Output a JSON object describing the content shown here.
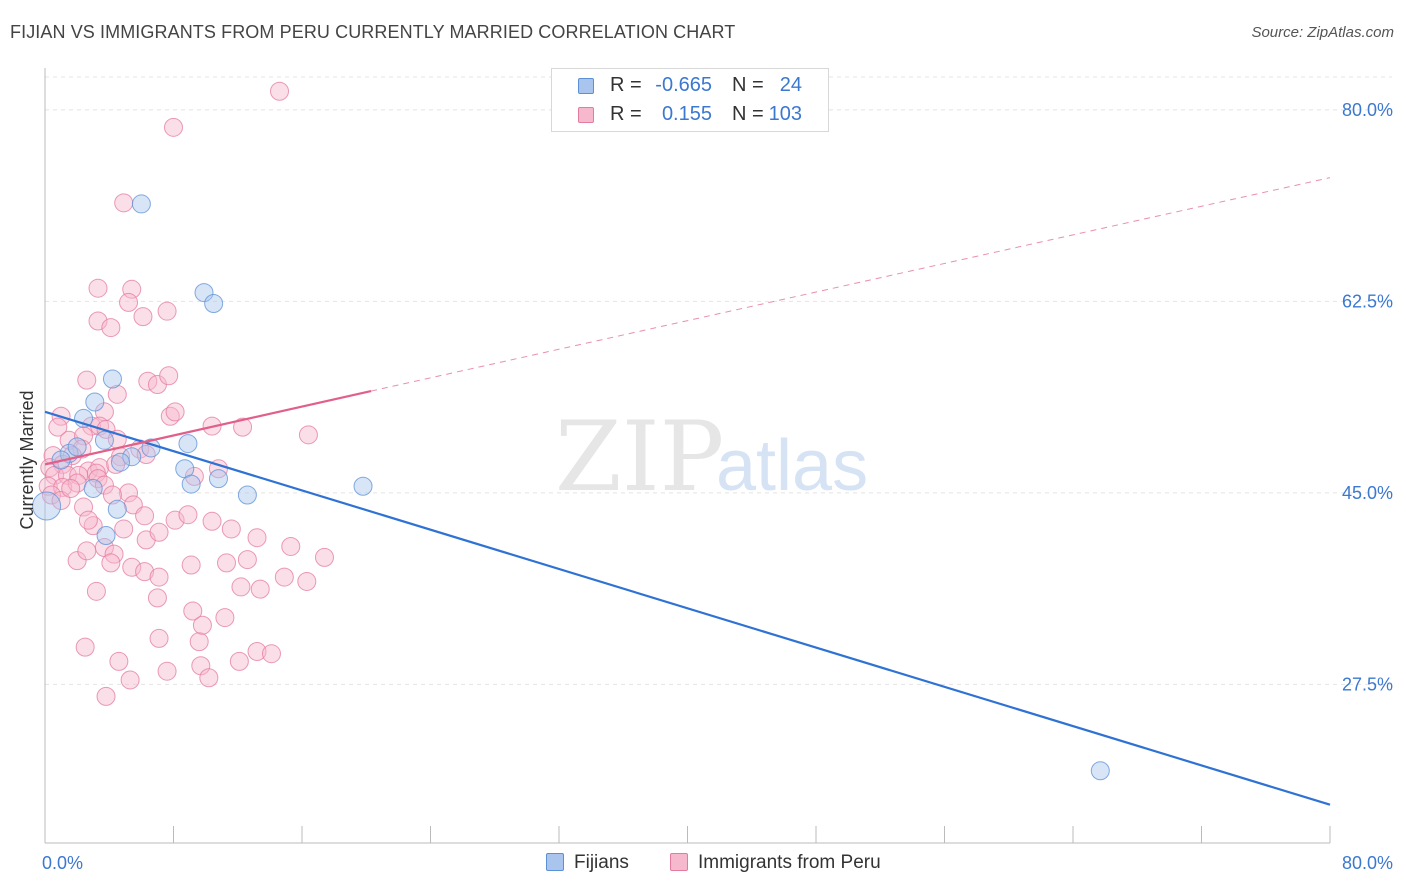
{
  "title": "FIJIAN VS IMMIGRANTS FROM PERU CURRENTLY MARRIED CORRELATION CHART",
  "source": "Source: ZipAtlas.com",
  "watermark": {
    "zip": "ZIP",
    "atlas": "atlas"
  },
  "legend": {
    "rows": [
      {
        "r_label": "R =",
        "r_value": "-0.665",
        "n_label": "N =",
        "n_value": "24",
        "color": "#a9c5ee",
        "stroke": "#5b8fd6"
      },
      {
        "r_label": "R =",
        "r_value": "0.155",
        "n_label": "N =",
        "n_value": "103",
        "color": "#f6b8cc",
        "stroke": "#e47aa0"
      }
    ]
  },
  "chart_data": {
    "type": "scatter",
    "ylabel": "Currently Married",
    "xlabel": "",
    "xlim": [
      0,
      80
    ],
    "ylim": [
      13,
      83
    ],
    "x_tick_labels": [
      "0.0%",
      "80.0%"
    ],
    "y_ticks": [
      27.5,
      45.0,
      62.5,
      80.0
    ],
    "y_tick_labels": [
      "27.5%",
      "45.0%",
      "62.5%",
      "80.0%"
    ],
    "grid": true,
    "legend_position": "bottom-center",
    "series": [
      {
        "name": "Fijians",
        "color": "#a9c5ee",
        "stroke": "#5b8fd6",
        "trend_color": "#2f72d4",
        "trend": {
          "x0": 0,
          "y0": 52.4,
          "x1": 80,
          "y1": 16.5,
          "dashed_to": 80
        },
        "points": [
          [
            0.1,
            43.8,
            14
          ],
          [
            3.1,
            53.3,
            9
          ],
          [
            2.4,
            51.8,
            9
          ],
          [
            4.2,
            55.4,
            9
          ],
          [
            6.0,
            71.4,
            9
          ],
          [
            9.9,
            63.3,
            9
          ],
          [
            10.5,
            62.3,
            9
          ],
          [
            3.7,
            49.8,
            9
          ],
          [
            5.4,
            48.3,
            9
          ],
          [
            4.7,
            47.8,
            9
          ],
          [
            3.0,
            45.4,
            9
          ],
          [
            4.5,
            43.5,
            9
          ],
          [
            6.6,
            49.1,
            9
          ],
          [
            8.9,
            49.5,
            9
          ],
          [
            8.7,
            47.2,
            9
          ],
          [
            9.1,
            45.8,
            9
          ],
          [
            10.8,
            46.3,
            9
          ],
          [
            12.6,
            44.8,
            9
          ],
          [
            3.8,
            41.1,
            9
          ],
          [
            19.8,
            45.6,
            9
          ],
          [
            1.5,
            48.6,
            9
          ],
          [
            2.0,
            49.2,
            9
          ],
          [
            65.7,
            19.6,
            9
          ],
          [
            1.0,
            48.0,
            9
          ]
        ]
      },
      {
        "name": "Immigrants from Peru",
        "color": "#f6b8cc",
        "stroke": "#e47aa0",
        "trend_color": "#e0608a",
        "trend": {
          "x0": 0,
          "y0": 47.6,
          "x1": 20.3,
          "y1": 54.3,
          "dashed_to": 80,
          "y_end": 73.8
        },
        "points": [
          [
            14.6,
            81.7,
            9
          ],
          [
            8.0,
            78.4,
            9
          ],
          [
            4.9,
            71.5,
            9
          ],
          [
            5.4,
            63.6,
            9
          ],
          [
            5.2,
            62.4,
            9
          ],
          [
            3.3,
            63.7,
            9
          ],
          [
            3.3,
            60.7,
            9
          ],
          [
            4.1,
            60.1,
            9
          ],
          [
            7.6,
            61.6,
            9
          ],
          [
            6.1,
            61.1,
            9
          ],
          [
            2.6,
            55.3,
            9
          ],
          [
            4.5,
            54.0,
            9
          ],
          [
            6.4,
            55.2,
            9
          ],
          [
            7.0,
            54.9,
            9
          ],
          [
            7.7,
            55.7,
            9
          ],
          [
            1.0,
            52.0,
            9
          ],
          [
            3.7,
            52.4,
            9
          ],
          [
            2.9,
            51.1,
            9
          ],
          [
            3.4,
            51.1,
            9
          ],
          [
            0.8,
            51.0,
            9
          ],
          [
            1.5,
            49.8,
            9
          ],
          [
            2.4,
            50.2,
            9
          ],
          [
            3.8,
            50.8,
            9
          ],
          [
            4.5,
            49.9,
            9
          ],
          [
            7.8,
            52.0,
            9
          ],
          [
            8.1,
            52.4,
            9
          ],
          [
            10.4,
            51.1,
            9
          ],
          [
            12.3,
            51.0,
            9
          ],
          [
            16.4,
            50.3,
            9
          ],
          [
            2.3,
            49.0,
            9
          ],
          [
            1.7,
            48.4,
            9
          ],
          [
            0.5,
            48.4,
            9
          ],
          [
            1.1,
            47.6,
            9
          ],
          [
            2.7,
            47.0,
            9
          ],
          [
            3.4,
            47.3,
            9
          ],
          [
            4.7,
            48.3,
            9
          ],
          [
            5.9,
            49.0,
            9
          ],
          [
            6.3,
            48.5,
            9
          ],
          [
            0.3,
            47.3,
            9
          ],
          [
            0.6,
            46.6,
            9
          ],
          [
            1.4,
            46.6,
            9
          ],
          [
            2.1,
            46.6,
            9
          ],
          [
            3.2,
            46.8,
            9
          ],
          [
            4.4,
            47.6,
            9
          ],
          [
            10.8,
            47.2,
            9
          ],
          [
            0.2,
            45.6,
            9
          ],
          [
            1.1,
            45.5,
            9
          ],
          [
            2.0,
            45.9,
            9
          ],
          [
            3.3,
            46.3,
            9
          ],
          [
            3.7,
            45.7,
            9
          ],
          [
            0.4,
            44.8,
            9
          ],
          [
            1.0,
            44.3,
            9
          ],
          [
            2.4,
            43.7,
            9
          ],
          [
            3.0,
            42.0,
            9
          ],
          [
            5.2,
            45.0,
            9
          ],
          [
            9.3,
            46.5,
            9
          ],
          [
            1.6,
            45.4,
            9
          ],
          [
            4.2,
            44.8,
            9
          ],
          [
            5.5,
            43.9,
            9
          ],
          [
            2.7,
            42.5,
            9
          ],
          [
            4.9,
            41.7,
            9
          ],
          [
            6.2,
            42.9,
            9
          ],
          [
            6.3,
            40.7,
            9
          ],
          [
            3.7,
            40.0,
            9
          ],
          [
            4.3,
            39.4,
            9
          ],
          [
            5.4,
            38.2,
            9
          ],
          [
            6.2,
            37.8,
            9
          ],
          [
            2.0,
            38.8,
            9
          ],
          [
            2.6,
            39.7,
            9
          ],
          [
            4.1,
            38.6,
            9
          ],
          [
            7.1,
            41.4,
            9
          ],
          [
            8.1,
            42.5,
            9
          ],
          [
            8.9,
            43.0,
            9
          ],
          [
            10.4,
            42.4,
            9
          ],
          [
            11.6,
            41.7,
            9
          ],
          [
            13.2,
            40.9,
            9
          ],
          [
            15.3,
            40.1,
            9
          ],
          [
            17.4,
            39.1,
            9
          ],
          [
            3.2,
            36.0,
            9
          ],
          [
            7.0,
            35.4,
            9
          ],
          [
            9.2,
            34.2,
            9
          ],
          [
            11.2,
            33.6,
            9
          ],
          [
            4.6,
            29.6,
            9
          ],
          [
            7.1,
            31.7,
            9
          ],
          [
            9.6,
            31.4,
            9
          ],
          [
            13.2,
            30.5,
            9
          ],
          [
            3.8,
            26.4,
            9
          ],
          [
            5.3,
            27.9,
            9
          ],
          [
            7.6,
            28.7,
            9
          ],
          [
            9.7,
            29.2,
            9
          ],
          [
            12.1,
            29.6,
            9
          ],
          [
            14.1,
            30.3,
            9
          ],
          [
            9.8,
            32.9,
            9
          ],
          [
            12.2,
            36.4,
            9
          ],
          [
            13.4,
            36.2,
            9
          ],
          [
            7.1,
            37.3,
            9
          ],
          [
            9.1,
            38.4,
            9
          ],
          [
            11.3,
            38.6,
            9
          ],
          [
            12.6,
            38.9,
            9
          ],
          [
            14.9,
            37.3,
            9
          ],
          [
            16.3,
            36.9,
            9
          ],
          [
            2.5,
            30.9,
            9
          ],
          [
            10.2,
            28.1,
            9
          ]
        ]
      }
    ]
  }
}
